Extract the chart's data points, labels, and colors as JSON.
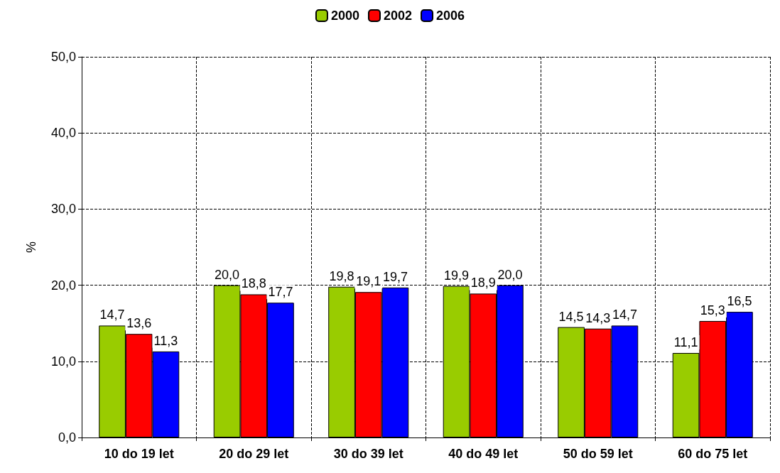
{
  "chart_data": {
    "type": "bar",
    "ylabel": "%",
    "categories": [
      "10 do 19 let",
      "20 do 29 let",
      "30 do 39 let",
      "40 do 49 let",
      "50 do 59 let",
      "60 do 75 let"
    ],
    "series": [
      {
        "name": "2000",
        "color": "#99cc00",
        "values": [
          14.7,
          20.0,
          19.8,
          19.9,
          14.5,
          11.1
        ],
        "value_labels": [
          "14,7",
          "20,0",
          "19,8",
          "19,9",
          "14,5",
          "11,1"
        ]
      },
      {
        "name": "2002",
        "color": "#ff0000",
        "values": [
          13.6,
          18.8,
          19.1,
          18.9,
          14.3,
          15.3
        ],
        "value_labels": [
          "13,6",
          "18,8",
          "19,1",
          "18,9",
          "14,3",
          "15,3"
        ]
      },
      {
        "name": "2006",
        "color": "#0000ff",
        "values": [
          11.3,
          17.7,
          19.7,
          20.0,
          14.7,
          16.5
        ],
        "value_labels": [
          "11,3",
          "17,7",
          "19,7",
          "20,0",
          "14,7",
          "16,5"
        ]
      }
    ],
    "ylim": [
      0,
      50
    ],
    "yticks": [
      {
        "value": 0,
        "label": "0,0"
      },
      {
        "value": 10,
        "label": "10,0"
      },
      {
        "value": 20,
        "label": "20,0"
      },
      {
        "value": 30,
        "label": "30,0"
      },
      {
        "value": 40,
        "label": "40,0"
      },
      {
        "value": 50,
        "label": "50,0"
      }
    ],
    "grid": true,
    "legend": "top"
  }
}
